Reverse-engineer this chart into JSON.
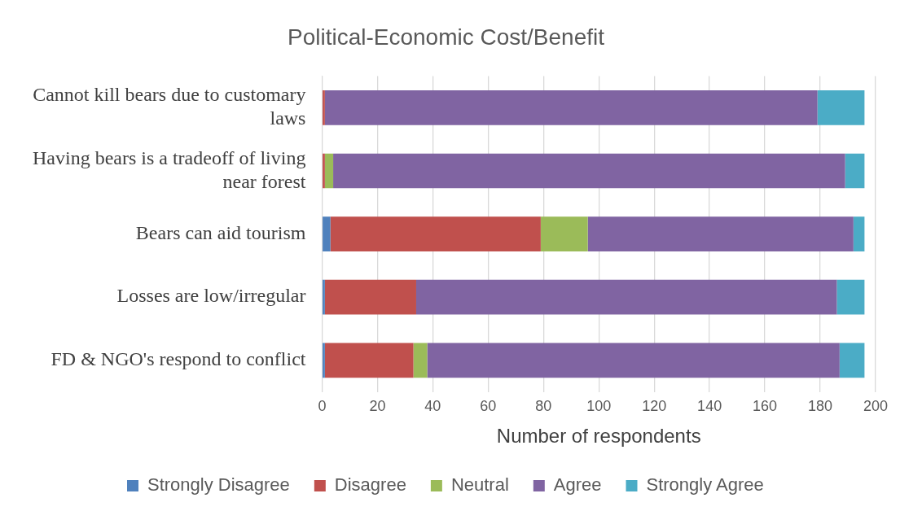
{
  "chart_data": {
    "type": "bar",
    "orientation": "horizontal",
    "stacked": true,
    "title": "Political-Economic Cost/Benefit",
    "xlabel": "Number of respondents",
    "categories": [
      "Cannot kill bears due to customary laws",
      "Having bears is a tradeoff of living near forest",
      "Bears can aid tourism",
      "Losses are low/irregular",
      "FD & NGO's respond to conflict"
    ],
    "series": [
      {
        "name": "Strongly Disagree",
        "color": "#4f81bd",
        "values": [
          0,
          0,
          3,
          1,
          1
        ]
      },
      {
        "name": "Disagree",
        "color": "#c0504d",
        "values": [
          1,
          1,
          76,
          33,
          32
        ]
      },
      {
        "name": "Neutral",
        "color": "#9bbb59",
        "values": [
          0,
          3,
          17,
          0,
          5
        ]
      },
      {
        "name": "Agree",
        "color": "#8064a2",
        "values": [
          178,
          185,
          96,
          152,
          149
        ]
      },
      {
        "name": "Strongly Agree",
        "color": "#4bacc6",
        "values": [
          17,
          7,
          4,
          10,
          9
        ]
      }
    ],
    "xlim": [
      0,
      200
    ],
    "xticks": [
      0,
      20,
      40,
      60,
      80,
      100,
      120,
      140,
      160,
      180,
      200
    ],
    "grid": "x",
    "legend": "bottom"
  }
}
